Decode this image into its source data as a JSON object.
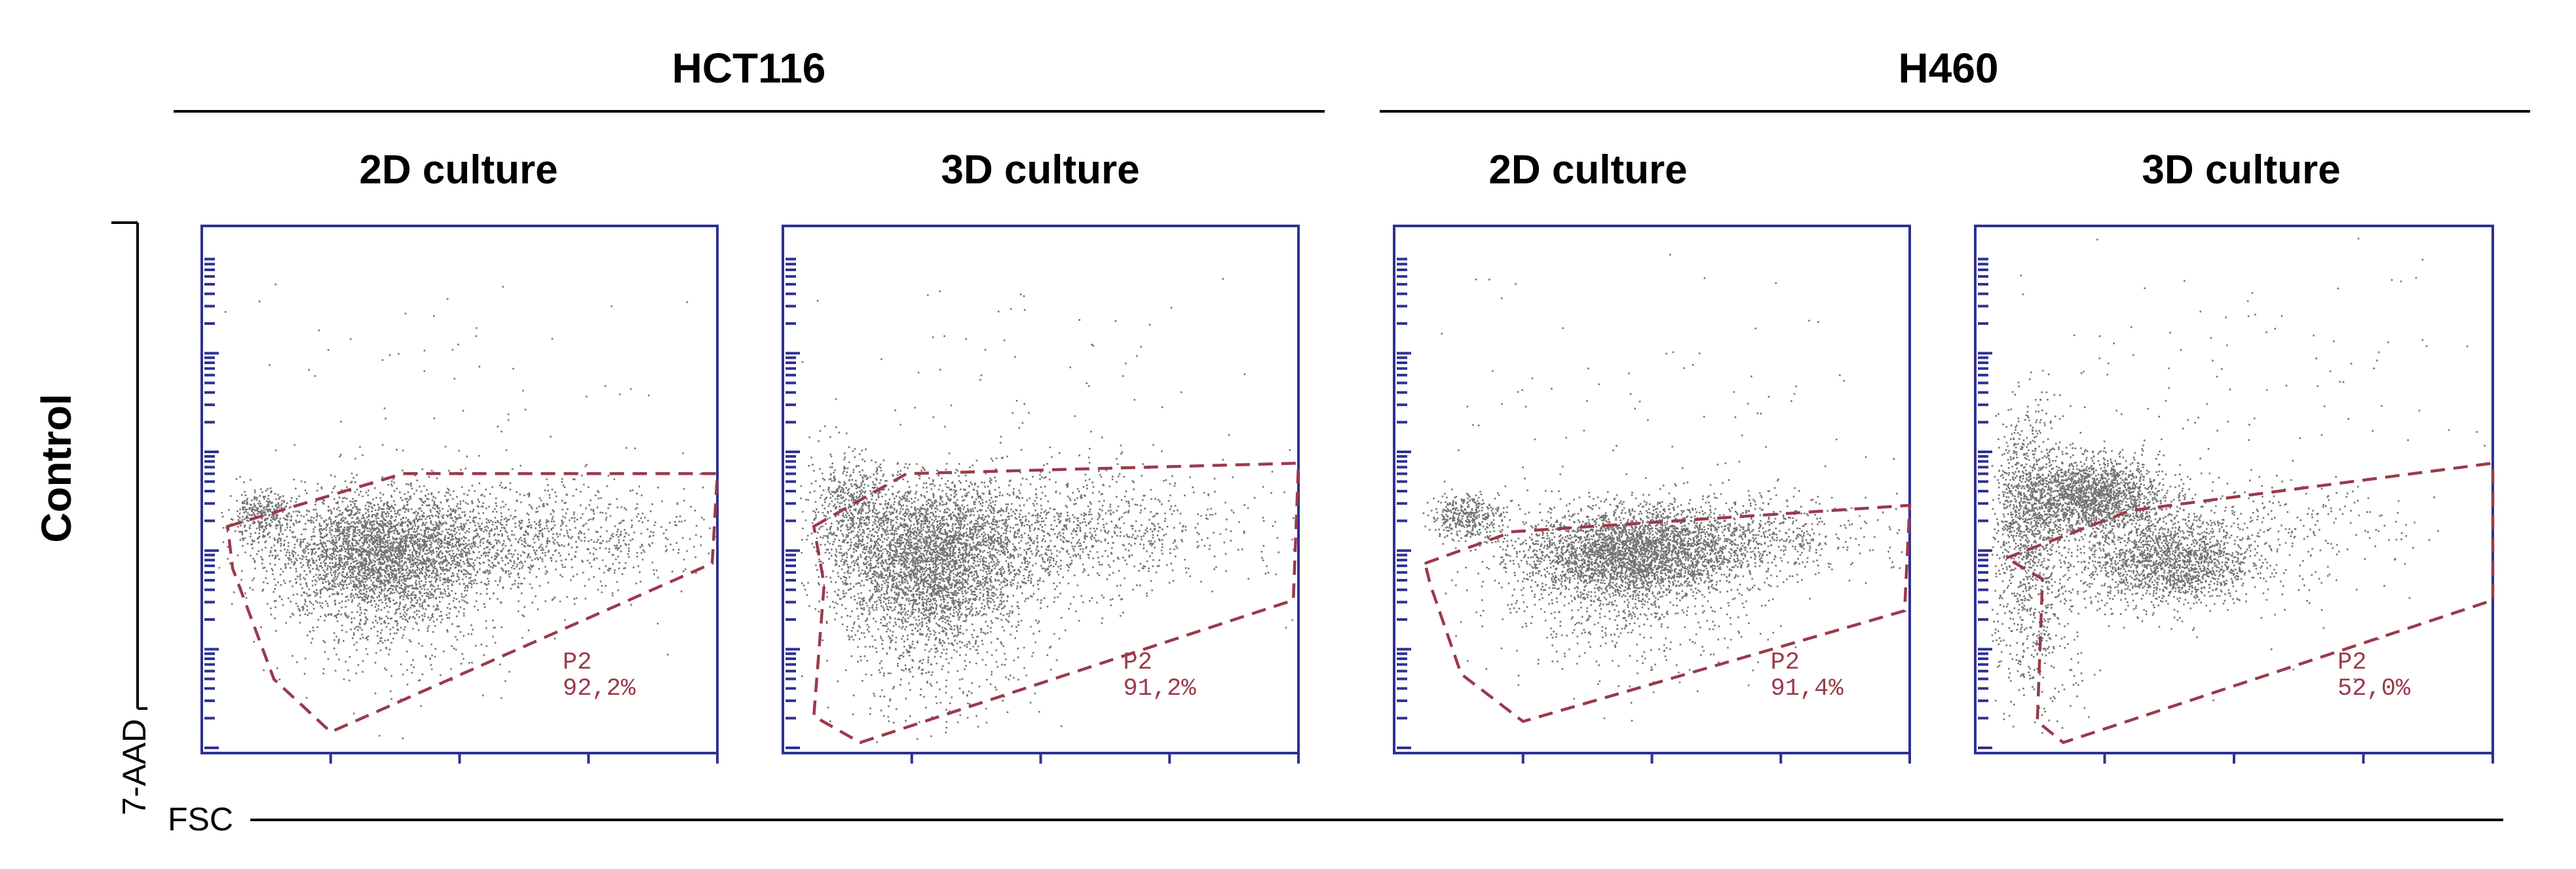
{
  "row_label": "Control",
  "y_axis_label": "7-AAD",
  "x_axis_label": "FSC",
  "groups": [
    {
      "title": "HCT116"
    },
    {
      "title": "H460"
    }
  ],
  "colors": {
    "frame": "#2e3192",
    "gate": "#9b3a4a",
    "dots": "#000000"
  },
  "chart_data": [
    {
      "type": "scatter",
      "title": "2D culture",
      "group": "HCT116",
      "xlabel": "FSC",
      "ylabel": "7-AAD",
      "gate": {
        "name": "P2",
        "percent": "92,2%"
      },
      "populations": [
        {
          "cx": 0.34,
          "cy": 0.38,
          "sx": 0.1,
          "sy": 0.055,
          "n": 2600
        },
        {
          "cx": 0.58,
          "cy": 0.41,
          "sx": 0.2,
          "sy": 0.05,
          "n": 1300
        },
        {
          "cx": 0.11,
          "cy": 0.45,
          "sx": 0.03,
          "sy": 0.025,
          "n": 320
        },
        {
          "cx": 0.38,
          "cy": 0.3,
          "sx": 0.11,
          "sy": 0.08,
          "n": 700
        },
        {
          "cx": 0.5,
          "cy": 0.55,
          "sx": 0.3,
          "sy": 0.2,
          "n": 140
        }
      ]
    },
    {
      "type": "scatter",
      "title": "3D culture",
      "group": "HCT116",
      "xlabel": "FSC",
      "ylabel": "7-AAD",
      "gate": {
        "name": "P2",
        "percent": "91,2%"
      },
      "populations": [
        {
          "cx": 0.28,
          "cy": 0.37,
          "sx": 0.09,
          "sy": 0.07,
          "n": 2800
        },
        {
          "cx": 0.5,
          "cy": 0.42,
          "sx": 0.19,
          "sy": 0.055,
          "n": 1300
        },
        {
          "cx": 0.13,
          "cy": 0.47,
          "sx": 0.04,
          "sy": 0.05,
          "n": 450
        },
        {
          "cx": 0.3,
          "cy": 0.26,
          "sx": 0.1,
          "sy": 0.1,
          "n": 800
        },
        {
          "cx": 0.45,
          "cy": 0.55,
          "sx": 0.3,
          "sy": 0.2,
          "n": 160
        }
      ]
    },
    {
      "type": "scatter",
      "title": "2D culture",
      "group": "H460",
      "xlabel": "FSC",
      "ylabel": "7-AAD",
      "gate": {
        "name": "P2",
        "percent": "91,4%"
      },
      "populations": [
        {
          "cx": 0.45,
          "cy": 0.38,
          "sx": 0.1,
          "sy": 0.04,
          "n": 2600
        },
        {
          "cx": 0.62,
          "cy": 0.41,
          "sx": 0.15,
          "sy": 0.04,
          "n": 1000
        },
        {
          "cx": 0.14,
          "cy": 0.45,
          "sx": 0.035,
          "sy": 0.022,
          "n": 380
        },
        {
          "cx": 0.45,
          "cy": 0.3,
          "sx": 0.13,
          "sy": 0.07,
          "n": 700
        },
        {
          "cx": 0.5,
          "cy": 0.55,
          "sx": 0.3,
          "sy": 0.2,
          "n": 120
        }
      ]
    },
    {
      "type": "scatter",
      "title": "3D culture",
      "group": "H460",
      "xlabel": "FSC",
      "ylabel": "7-AAD",
      "gate": {
        "name": "P2",
        "percent": "52,0%"
      },
      "populations": [
        {
          "cx": 0.22,
          "cy": 0.49,
          "sx": 0.07,
          "sy": 0.035,
          "n": 1800
        },
        {
          "cx": 0.37,
          "cy": 0.36,
          "sx": 0.08,
          "sy": 0.04,
          "n": 1500
        },
        {
          "cx": 0.1,
          "cy": 0.45,
          "sx": 0.035,
          "sy": 0.1,
          "n": 900
        },
        {
          "cx": 0.45,
          "cy": 0.42,
          "sx": 0.18,
          "sy": 0.05,
          "n": 500
        },
        {
          "cx": 0.12,
          "cy": 0.25,
          "sx": 0.05,
          "sy": 0.1,
          "n": 350
        },
        {
          "cx": 0.5,
          "cy": 0.6,
          "sx": 0.3,
          "sy": 0.22,
          "n": 180
        }
      ]
    }
  ]
}
